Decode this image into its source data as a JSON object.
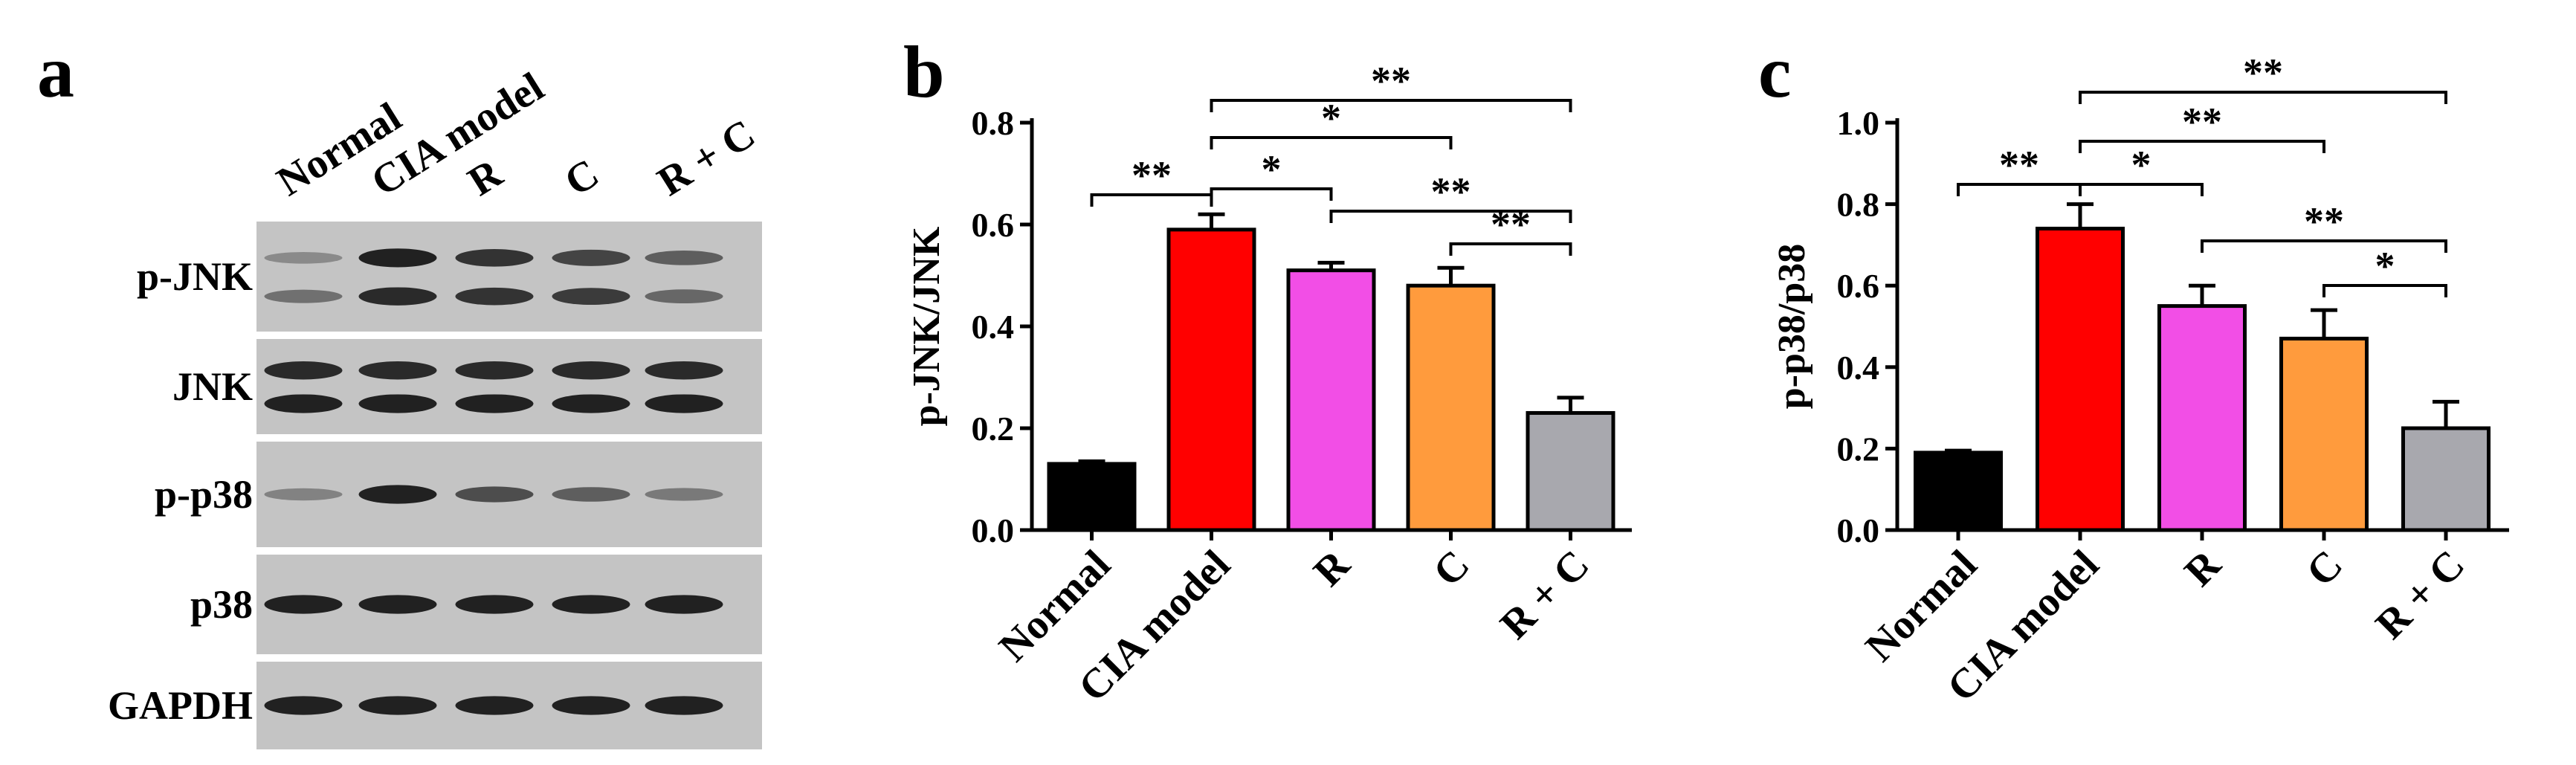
{
  "panel_a": {
    "letter": "a",
    "lanes": [
      "Normal",
      "CIA model",
      "R",
      "C",
      "R + C"
    ],
    "rows": [
      {
        "label": "p-JNK",
        "bands": 2,
        "intensity": [
          [
            0.35,
            0.95,
            0.85,
            0.75,
            0.6
          ],
          [
            0.5,
            0.9,
            0.85,
            0.8,
            0.55
          ]
        ]
      },
      {
        "label": "JNK",
        "bands": 2,
        "intensity": [
          [
            0.9,
            0.9,
            0.9,
            0.9,
            0.9
          ],
          [
            0.95,
            0.95,
            0.95,
            0.95,
            0.95
          ]
        ]
      },
      {
        "label": "p-p38",
        "bands": 1,
        "intensity": [
          [
            0.4,
            0.95,
            0.7,
            0.6,
            0.45
          ]
        ]
      },
      {
        "label": "p38",
        "bands": 1,
        "intensity": [
          [
            0.95,
            0.95,
            0.95,
            0.95,
            0.95
          ]
        ]
      },
      {
        "label": "GAPDH",
        "bands": 1,
        "intensity": [
          [
            0.95,
            0.95,
            0.95,
            0.95,
            0.95
          ]
        ]
      }
    ]
  },
  "chart_data": [
    {
      "panel": "b",
      "type": "bar",
      "title": "",
      "categories": [
        "Normal",
        "CIA model",
        "R",
        "C",
        "R + C"
      ],
      "values": [
        0.13,
        0.59,
        0.51,
        0.48,
        0.23
      ],
      "errors": [
        0.005,
        0.03,
        0.015,
        0.035,
        0.03
      ],
      "colors": [
        "#000000",
        "#ff0000",
        "#f24ee6",
        "#ff9b3d",
        "#a8a8ae"
      ],
      "ylabel": "p-JNK/JNK",
      "xlabel": "",
      "ylim": [
        0,
        0.8
      ],
      "yticks": [
        "0.0",
        "0.2",
        "0.4",
        "0.6",
        "0.8"
      ],
      "significance": [
        {
          "from": 0,
          "to": 1,
          "label": "**"
        },
        {
          "from": 1,
          "to": 2,
          "label": "*"
        },
        {
          "from": 1,
          "to": 3,
          "label": "*"
        },
        {
          "from": 1,
          "to": 4,
          "label": "**"
        },
        {
          "from": 2,
          "to": 4,
          "label": "**"
        },
        {
          "from": 3,
          "to": 4,
          "label": "**"
        }
      ]
    },
    {
      "panel": "c",
      "type": "bar",
      "title": "",
      "categories": [
        "Normal",
        "CIA model",
        "R",
        "C",
        "R + C"
      ],
      "values": [
        0.19,
        0.74,
        0.55,
        0.47,
        0.25
      ],
      "errors": [
        0.005,
        0.06,
        0.05,
        0.07,
        0.065
      ],
      "colors": [
        "#000000",
        "#ff0000",
        "#f24ee6",
        "#ff9b3d",
        "#a8a8ae"
      ],
      "ylabel": "p-p38/p38",
      "xlabel": "",
      "ylim": [
        0,
        1.0
      ],
      "yticks": [
        "0.0",
        "0.2",
        "0.4",
        "0.6",
        "0.8",
        "1.0"
      ],
      "significance": [
        {
          "from": 0,
          "to": 1,
          "label": "**"
        },
        {
          "from": 1,
          "to": 2,
          "label": "*"
        },
        {
          "from": 1,
          "to": 3,
          "label": "**"
        },
        {
          "from": 1,
          "to": 4,
          "label": "**"
        },
        {
          "from": 2,
          "to": 4,
          "label": "**"
        },
        {
          "from": 3,
          "to": 4,
          "label": "*"
        }
      ]
    }
  ]
}
